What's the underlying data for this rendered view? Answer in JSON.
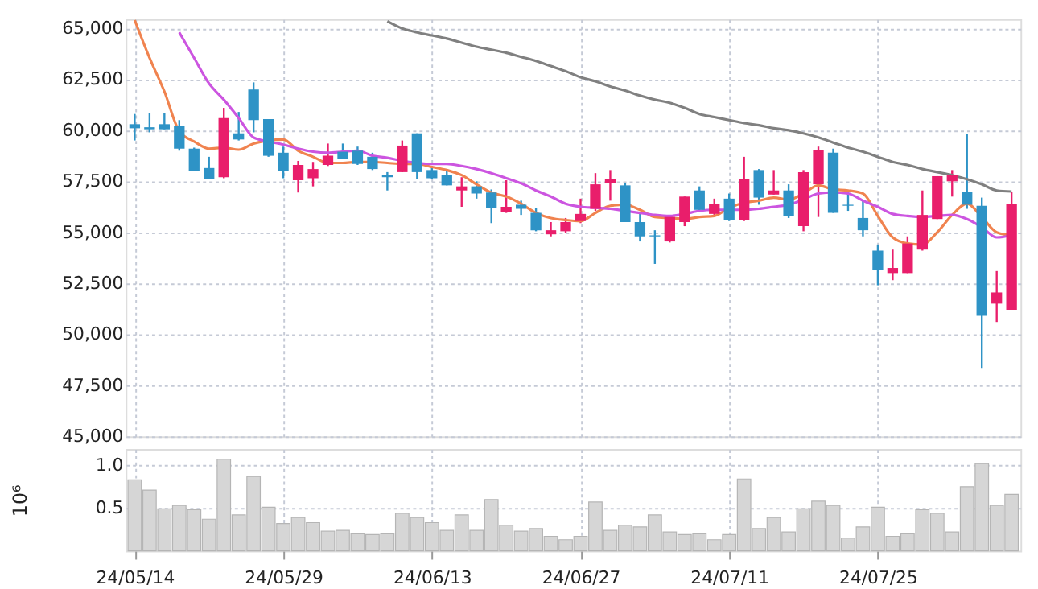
{
  "chart_data": [
    {
      "type": "candlestick",
      "categories": [
        null,
        null,
        null,
        null,
        null,
        null,
        null,
        null,
        null,
        null,
        null,
        null,
        null,
        null,
        null,
        null,
        null,
        null,
        null,
        null,
        null,
        null,
        null,
        null,
        null,
        null,
        null,
        null,
        null,
        null,
        null,
        null,
        null,
        null,
        null,
        null,
        null,
        null,
        null,
        null,
        null,
        null,
        null,
        null,
        null,
        null,
        null,
        null,
        null,
        null,
        null,
        null,
        null,
        null,
        null,
        null,
        null,
        null,
        null,
        null
      ],
      "ohlc": [
        [
          60300,
          60800,
          59500,
          60100
        ],
        [
          60150,
          60850,
          59900,
          60050
        ],
        [
          60300,
          60850,
          60050,
          60050
        ],
        [
          60200,
          60500,
          59000,
          59100
        ],
        [
          59100,
          59150,
          58000,
          58000
        ],
        [
          58150,
          58700,
          57600,
          57600
        ],
        [
          57700,
          61100,
          57650,
          60600
        ],
        [
          59850,
          60900,
          59500,
          59550
        ],
        [
          62000,
          62350,
          59900,
          60500
        ],
        [
          60550,
          60550,
          58700,
          58750
        ],
        [
          58900,
          59200,
          57650,
          58000
        ],
        [
          57550,
          58500,
          56950,
          58300
        ],
        [
          57650,
          58450,
          57250,
          58100
        ],
        [
          58300,
          59350,
          58250,
          58750
        ],
        [
          58950,
          59350,
          58600,
          58600
        ],
        [
          59000,
          59200,
          58300,
          58350
        ],
        [
          58700,
          58900,
          58050,
          58100
        ],
        [
          57800,
          57950,
          57050,
          57700
        ],
        [
          57950,
          59500,
          57950,
          59250
        ],
        [
          59850,
          59850,
          57600,
          57950
        ],
        [
          58050,
          58250,
          57600,
          57650
        ],
        [
          57800,
          58050,
          57300,
          57300
        ],
        [
          57050,
          57700,
          56250,
          57250
        ],
        [
          57250,
          57500,
          56650,
          56900
        ],
        [
          56950,
          57100,
          55450,
          56200
        ],
        [
          56000,
          57550,
          55950,
          56250
        ],
        [
          56350,
          56550,
          55850,
          56150
        ],
        [
          55950,
          56200,
          55050,
          55100
        ],
        [
          54900,
          55500,
          54800,
          55100
        ],
        [
          55050,
          55700,
          54950,
          55500
        ],
        [
          55550,
          56650,
          55450,
          55900
        ],
        [
          56150,
          57900,
          56050,
          57350
        ],
        [
          57400,
          58050,
          56550,
          57600
        ],
        [
          57300,
          57400,
          55500,
          55500
        ],
        [
          55500,
          56000,
          54550,
          54800
        ],
        [
          54850,
          55100,
          53450,
          54800
        ],
        [
          54550,
          55800,
          54500,
          55750
        ],
        [
          55500,
          56750,
          55300,
          56750
        ],
        [
          57050,
          57250,
          56050,
          56100
        ],
        [
          55900,
          56650,
          55850,
          56400
        ],
        [
          56650,
          56900,
          55550,
          55600
        ],
        [
          55600,
          58700,
          55550,
          57600
        ],
        [
          58050,
          58100,
          56350,
          56700
        ],
        [
          56850,
          58050,
          56850,
          57050
        ],
        [
          57050,
          57350,
          55700,
          55800
        ],
        [
          55300,
          58050,
          55050,
          57950
        ],
        [
          57350,
          59200,
          55750,
          59050
        ],
        [
          58900,
          59100,
          55950,
          55950
        ],
        [
          56350,
          57000,
          56050,
          56300
        ],
        [
          55700,
          56550,
          54800,
          55100
        ],
        [
          54100,
          54400,
          52400,
          53150
        ],
        [
          53000,
          54150,
          52650,
          53250
        ],
        [
          53000,
          54800,
          53000,
          54450
        ],
        [
          54150,
          57050,
          54100,
          55850
        ],
        [
          55650,
          57750,
          55650,
          57750
        ],
        [
          57500,
          58050,
          56750,
          57800
        ],
        [
          57000,
          59800,
          56150,
          56350
        ],
        [
          56300,
          56700,
          48350,
          50900
        ],
        [
          51500,
          53100,
          50600,
          52050
        ],
        [
          51200,
          57000,
          51200,
          56400
        ]
      ],
      "colors": [
        "#2e93c6",
        "#2e93c6",
        "#2e93c6",
        "#2e93c6",
        "#2e93c6",
        "#2e93c6",
        "#e91e6b",
        "#2e93c6",
        "#2e93c6",
        "#2e93c6",
        "#2e93c6",
        "#e91e6b",
        "#e91e6b",
        "#e91e6b",
        "#2e93c6",
        "#2e93c6",
        "#2e93c6",
        "#2e93c6",
        "#e91e6b",
        "#2e93c6",
        "#2e93c6",
        "#2e93c6",
        "#e91e6b",
        "#2e93c6",
        "#2e93c6",
        "#e91e6b",
        "#2e93c6",
        "#2e93c6",
        "#e91e6b",
        "#e91e6b",
        "#e91e6b",
        "#e91e6b",
        "#e91e6b",
        "#2e93c6",
        "#2e93c6",
        "#2e93c6",
        "#e91e6b",
        "#e91e6b",
        "#2e93c6",
        "#e91e6b",
        "#2e93c6",
        "#e91e6b",
        "#2e93c6",
        "#e91e6b",
        "#2e93c6",
        "#e91e6b",
        "#e91e6b",
        "#2e93c6",
        "#2e93c6",
        "#2e93c6",
        "#2e93c6",
        "#e91e6b",
        "#e91e6b",
        "#e91e6b",
        "#e91e6b",
        "#e91e6b",
        "#2e93c6",
        "#2e93c6",
        "#e91e6b",
        "#e91e6b"
      ],
      "series": [
        {
          "type": "line",
          "color": "#f0834f",
          "values": [
            65400,
            63550,
            61900,
            59950,
            59450,
            59100,
            59150,
            59050,
            59350,
            59500,
            59550,
            59000,
            58700,
            58400,
            58400,
            58450,
            58450,
            58400,
            58350,
            58350,
            58200,
            58050,
            57800,
            57350,
            56950,
            56750,
            56400,
            55950,
            55700,
            55600,
            55550,
            55950,
            56300,
            56350,
            56100,
            55750,
            55700,
            55650,
            55750,
            55800,
            56200,
            56450,
            56550,
            56700,
            56600,
            56900,
            57300,
            57100,
            57050,
            56900,
            55800,
            54750,
            54450,
            54400,
            55000,
            55850,
            56400,
            55750,
            55000,
            54850
          ]
        },
        {
          "type": "line",
          "color": "#cc55e0",
          "values": [
            null,
            null,
            null,
            64800,
            63550,
            62300,
            61500,
            60600,
            59650,
            59450,
            59300,
            59100,
            58950,
            58900,
            58950,
            59000,
            58750,
            58650,
            58500,
            58400,
            58350,
            58350,
            58250,
            58100,
            57900,
            57650,
            57400,
            57050,
            56750,
            56400,
            56250,
            56200,
            56150,
            56050,
            55950,
            55850,
            55800,
            55900,
            56050,
            56100,
            56100,
            56100,
            56150,
            56250,
            56350,
            56600,
            56900,
            56950,
            56900,
            56550,
            56250,
            55900,
            55800,
            55750,
            55800,
            55850,
            55650,
            55250,
            54750,
            54850
          ]
        },
        {
          "type": "line",
          "color": "#808080",
          "values": [
            null,
            null,
            null,
            null,
            null,
            null,
            null,
            null,
            null,
            null,
            null,
            null,
            null,
            null,
            null,
            null,
            null,
            65350,
            65000,
            64800,
            64650,
            64500,
            64300,
            64100,
            63950,
            63800,
            63600,
            63400,
            63150,
            62900,
            62600,
            62400,
            62150,
            61950,
            61700,
            61500,
            61350,
            61100,
            60800,
            60650,
            60500,
            60350,
            60250,
            60100,
            60000,
            59850,
            59650,
            59400,
            59150,
            58950,
            58700,
            58450,
            58300,
            58100,
            57950,
            57800,
            57600,
            57350,
            57050,
            57000
          ]
        }
      ],
      "ylim": [
        45000,
        65450
      ],
      "yticks": [
        {
          "value": 45000,
          "label": "45,000"
        },
        {
          "value": 47500,
          "label": "47,500"
        },
        {
          "value": 50000,
          "label": "50,000"
        },
        {
          "value": 52500,
          "label": "52,500"
        },
        {
          "value": 55000,
          "label": "55,000"
        },
        {
          "value": 57500,
          "label": "57,500"
        },
        {
          "value": 60000,
          "label": "60,000"
        },
        {
          "value": 62500,
          "label": "62,500"
        },
        {
          "value": 65000,
          "label": "65,000"
        }
      ],
      "grid": true,
      "tick_labels": "y"
    },
    {
      "type": "bar",
      "categories": [
        "24/05/14",
        null,
        null,
        null,
        null,
        null,
        null,
        null,
        null,
        null,
        "24/05/29",
        null,
        null,
        null,
        null,
        null,
        null,
        null,
        null,
        null,
        "24/06/13",
        null,
        null,
        null,
        null,
        null,
        null,
        null,
        null,
        null,
        "24/06/27",
        null,
        null,
        null,
        null,
        null,
        null,
        null,
        null,
        null,
        "24/07/11",
        null,
        null,
        null,
        null,
        null,
        null,
        null,
        null,
        null,
        "24/07/25",
        null,
        null,
        null,
        null,
        null,
        null,
        null,
        null,
        null
      ],
      "values": [
        0.83,
        0.71,
        0.49,
        0.53,
        0.48,
        0.37,
        1.07,
        0.42,
        0.87,
        0.51,
        0.32,
        0.39,
        0.33,
        0.23,
        0.24,
        0.2,
        0.19,
        0.2,
        0.44,
        0.39,
        0.33,
        0.24,
        0.42,
        0.24,
        0.6,
        0.3,
        0.23,
        0.26,
        0.17,
        0.13,
        0.17,
        0.57,
        0.24,
        0.3,
        0.28,
        0.42,
        0.22,
        0.19,
        0.2,
        0.13,
        0.19,
        0.84,
        0.26,
        0.39,
        0.22,
        0.49,
        0.58,
        0.53,
        0.15,
        0.28,
        0.51,
        0.17,
        0.2,
        0.48,
        0.44,
        0.22,
        0.75,
        1.02,
        0.53,
        0.66
      ],
      "color": "#d6d6d6",
      "ylabel": "10⁶",
      "ylim": [
        0,
        1.19
      ],
      "yticks": [
        0.5,
        {
          "value": 1,
          "label": "1.0"
        }
      ],
      "grid": true
    }
  ]
}
